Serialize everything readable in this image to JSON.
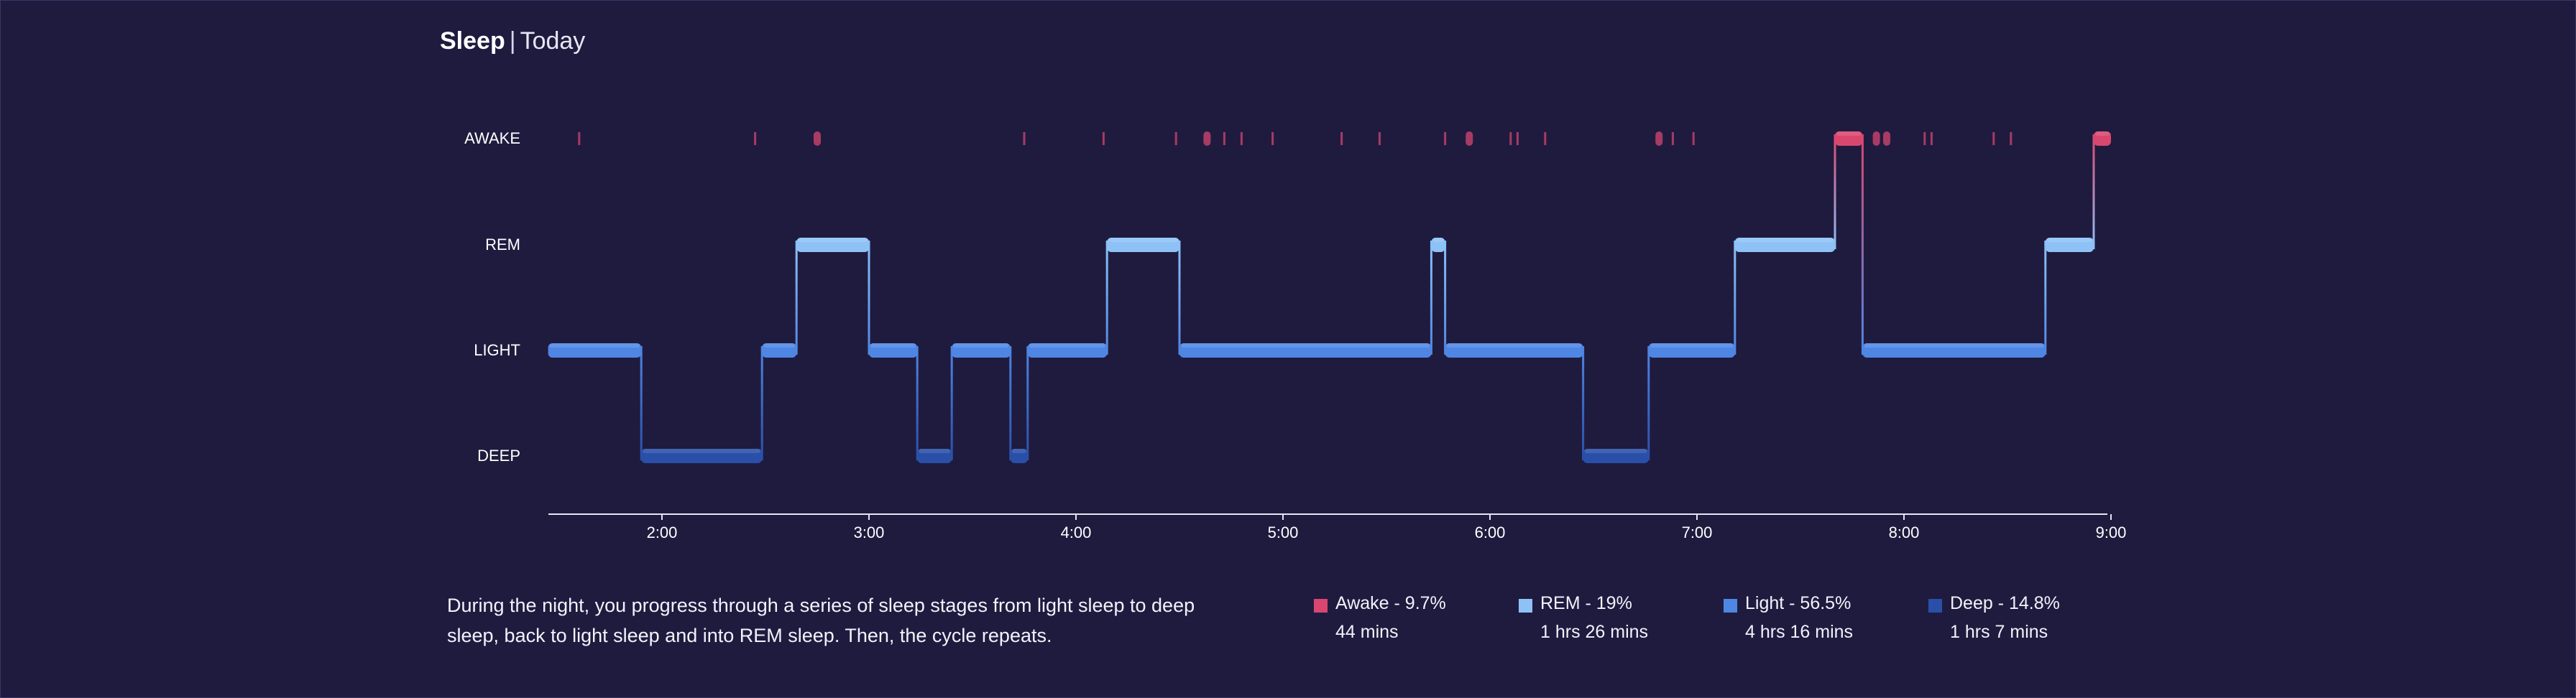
{
  "header": {
    "title": "Sleep",
    "separator": "|",
    "subtitle": "Today"
  },
  "stage_labels": {
    "awake": "AWAKE",
    "rem": "REM",
    "light": "LIGHT",
    "deep": "DEEP"
  },
  "description": "During the night, you progress through a series of sleep stages from light sleep to deep sleep, back to light sleep and into REM sleep. Then, the cycle repeats.",
  "legend": [
    {
      "title": "Awake - 9.7%",
      "value": "44 mins",
      "color": "#d9476e"
    },
    {
      "title": "REM - 19%",
      "value": "1 hrs 26 mins",
      "color": "#8ec2f7"
    },
    {
      "title": "Light - 56.5%",
      "value": "4 hrs 16 mins",
      "color": "#4f86e3"
    },
    {
      "title": "Deep - 14.8%",
      "value": "1 hrs 7 mins",
      "color": "#2a4fa8"
    }
  ],
  "chart_data": {
    "type": "hypnogram",
    "title": "Sleep | Today",
    "x_range": [
      "1:27",
      "9:00"
    ],
    "x_ticks": [
      "2:00",
      "3:00",
      "4:00",
      "5:00",
      "6:00",
      "7:00",
      "8:00",
      "9:00"
    ],
    "y_levels": [
      "AWAKE",
      "REM",
      "LIGHT",
      "DEEP"
    ],
    "colors": {
      "AWAKE": "#d9476e",
      "REM": "#8ec2f7",
      "LIGHT": "#4f86e3",
      "DEEP": "#2a4fa8",
      "background": "#1f1b3f"
    },
    "segments": [
      {
        "stage": "LIGHT",
        "start": "1:27",
        "end": "1:54"
      },
      {
        "stage": "DEEP",
        "start": "1:54",
        "end": "2:29"
      },
      {
        "stage": "LIGHT",
        "start": "2:29",
        "end": "2:39"
      },
      {
        "stage": "REM",
        "start": "2:39",
        "end": "3:00"
      },
      {
        "stage": "LIGHT",
        "start": "3:00",
        "end": "3:14"
      },
      {
        "stage": "DEEP",
        "start": "3:14",
        "end": "3:24"
      },
      {
        "stage": "LIGHT",
        "start": "3:24",
        "end": "3:41"
      },
      {
        "stage": "DEEP",
        "start": "3:41",
        "end": "3:46"
      },
      {
        "stage": "LIGHT",
        "start": "3:46",
        "end": "4:09"
      },
      {
        "stage": "REM",
        "start": "4:09",
        "end": "4:30"
      },
      {
        "stage": "LIGHT",
        "start": "4:30",
        "end": "5:43"
      },
      {
        "stage": "REM",
        "start": "5:43",
        "end": "5:47"
      },
      {
        "stage": "LIGHT",
        "start": "5:47",
        "end": "6:27"
      },
      {
        "stage": "DEEP",
        "start": "6:27",
        "end": "6:46"
      },
      {
        "stage": "LIGHT",
        "start": "6:46",
        "end": "7:11"
      },
      {
        "stage": "REM",
        "start": "7:11",
        "end": "7:40"
      },
      {
        "stage": "AWAKE",
        "start": "7:40",
        "end": "7:48"
      },
      {
        "stage": "LIGHT",
        "start": "7:48",
        "end": "8:41"
      },
      {
        "stage": "REM",
        "start": "8:41",
        "end": "8:55"
      },
      {
        "stage": "AWAKE",
        "start": "8:55",
        "end": "9:00"
      }
    ],
    "awake_marks": [
      {
        "time": "1:36",
        "kind": "line"
      },
      {
        "time": "2:27",
        "kind": "line"
      },
      {
        "time": "2:45",
        "kind": "blob"
      },
      {
        "time": "3:45",
        "kind": "line"
      },
      {
        "time": "4:08",
        "kind": "line"
      },
      {
        "time": "4:29",
        "kind": "line"
      },
      {
        "time": "4:38",
        "kind": "blob"
      },
      {
        "time": "4:43",
        "kind": "line"
      },
      {
        "time": "4:48",
        "kind": "line"
      },
      {
        "time": "4:57",
        "kind": "line"
      },
      {
        "time": "5:17",
        "kind": "line"
      },
      {
        "time": "5:28",
        "kind": "line"
      },
      {
        "time": "5:47",
        "kind": "line"
      },
      {
        "time": "5:54",
        "kind": "blob"
      },
      {
        "time": "6:06",
        "kind": "line"
      },
      {
        "time": "6:08",
        "kind": "line"
      },
      {
        "time": "6:16",
        "kind": "line"
      },
      {
        "time": "6:49",
        "kind": "blob"
      },
      {
        "time": "6:53",
        "kind": "line"
      },
      {
        "time": "6:59",
        "kind": "line"
      },
      {
        "time": "7:52",
        "kind": "blob"
      },
      {
        "time": "7:55",
        "kind": "blob"
      },
      {
        "time": "8:06",
        "kind": "line"
      },
      {
        "time": "8:08",
        "kind": "line"
      },
      {
        "time": "8:26",
        "kind": "line"
      },
      {
        "time": "8:31",
        "kind": "line"
      }
    ]
  }
}
